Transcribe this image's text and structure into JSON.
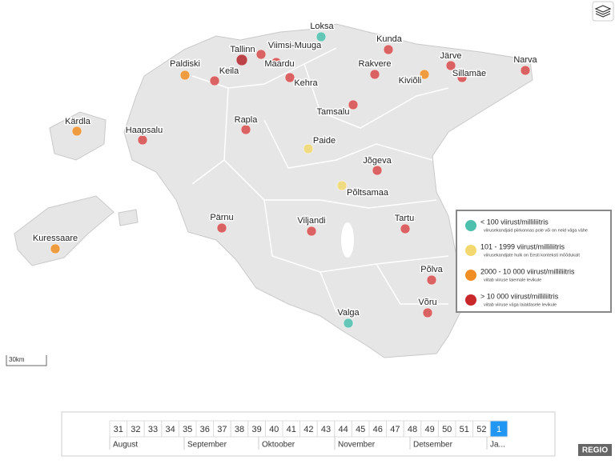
{
  "cities": [
    {
      "name": "Loksa",
      "color": "#4cbfad"
    },
    {
      "name": "Tallinn",
      "color": "#b3262a"
    },
    {
      "name": "Viimsi-Muuga",
      "color": "#d84a4a"
    },
    {
      "name": "Maardu",
      "color": "#d84a4a"
    },
    {
      "name": "Kunda",
      "color": "#d84a4a"
    },
    {
      "name": "Paldiski",
      "color": "#f08e22"
    },
    {
      "name": "Keila",
      "color": "#d84a4a"
    },
    {
      "name": "Kehra",
      "color": "#d84a4a"
    },
    {
      "name": "Rakvere",
      "color": "#d84a4a"
    },
    {
      "name": "Järve",
      "color": "#d84a4a"
    },
    {
      "name": "Sillamäe",
      "color": "#d84a4a"
    },
    {
      "name": "Narva",
      "color": "#d84a4a"
    },
    {
      "name": "Kiviõli",
      "color": "#f08e22"
    },
    {
      "name": "Tamsalu",
      "color": "#d84a4a"
    },
    {
      "name": "Rapla",
      "color": "#d84a4a"
    },
    {
      "name": "Haapsalu",
      "color": "#d84a4a"
    },
    {
      "name": "Kärdla",
      "color": "#f08e22"
    },
    {
      "name": "Paide",
      "color": "#f2d86e"
    },
    {
      "name": "Jõgeva",
      "color": "#d84a4a"
    },
    {
      "name": "Põltsamaa",
      "color": "#f2d86e"
    },
    {
      "name": "Pärnu",
      "color": "#d84a4a"
    },
    {
      "name": "Viljandi",
      "color": "#d84a4a"
    },
    {
      "name": "Tartu",
      "color": "#d84a4a"
    },
    {
      "name": "Kuressaare",
      "color": "#f08e22"
    },
    {
      "name": "Põlva",
      "color": "#d84a4a"
    },
    {
      "name": "Võru",
      "color": "#d84a4a"
    },
    {
      "name": "Valga",
      "color": "#4cbfad"
    }
  ],
  "legend": {
    "items": [
      {
        "title": "< 100 viirust/milliliitris",
        "note": "viirusekandjaid piirkonnas pole või on neid väga vähe",
        "color": "#4cbfad"
      },
      {
        "title": "101 - 1999 viirust/milliliitris",
        "note": "viirusekandjate hulk on Eesti konteksti mõõdukalt",
        "color": "#f2d86e"
      },
      {
        "title": "2000 - 10 000 viirust/milliliitris",
        "note": "viitab viiruse laiemale levikule",
        "color": "#f08e22"
      },
      {
        "title": "> 10 000 viirust/milliliitris",
        "note": "viitab viiruse väga laialdasele levikule",
        "color": "#c9282b"
      }
    ]
  },
  "scale": "30km",
  "timeline": {
    "weeks": [
      "31",
      "32",
      "33",
      "34",
      "35",
      "36",
      "37",
      "38",
      "39",
      "40",
      "41",
      "42",
      "43",
      "44",
      "45",
      "46",
      "47",
      "48",
      "49",
      "50",
      "51",
      "52",
      "1"
    ],
    "selected_week": "1",
    "months": [
      "August",
      "September",
      "Oktoober",
      "November",
      "Detsember",
      "Ja..."
    ]
  },
  "brand": "REGIO"
}
